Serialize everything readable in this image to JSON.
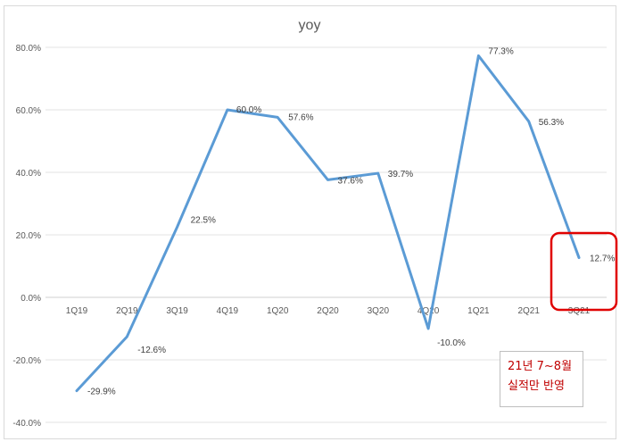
{
  "chart_data": {
    "type": "line",
    "title": "yoy",
    "categories": [
      "1Q19",
      "2Q19",
      "3Q19",
      "4Q19",
      "1Q20",
      "2Q20",
      "3Q20",
      "4Q20",
      "1Q21",
      "2Q21",
      "3Q21"
    ],
    "series": [
      {
        "values": [
          -29.9,
          -12.6,
          22.5,
          60.0,
          57.6,
          37.6,
          39.7,
          -10.0,
          77.3,
          56.3,
          12.7
        ],
        "labels": [
          "-29.9%",
          "-12.6%",
          "22.5%",
          "60.0%",
          "57.6%",
          "37.6%",
          "39.7%",
          "-10.0%",
          "77.3%",
          "56.3%",
          "12.7%"
        ],
        "color": "#5b9bd5"
      }
    ],
    "yticks": [
      -40,
      -20,
      0,
      20,
      40,
      60,
      80
    ],
    "ytick_labels": [
      "-40.0%",
      "-20.0%",
      "0.0%",
      "20.0%",
      "40.0%",
      "60.0%",
      "80.0%"
    ],
    "ylim": [
      -40,
      80
    ],
    "grid": true,
    "legend": "none"
  },
  "annotation": {
    "line1": "21년 7~8월",
    "line2": "실적만 반영",
    "text_color": "#c00000",
    "highlight_color": "#e00000"
  }
}
